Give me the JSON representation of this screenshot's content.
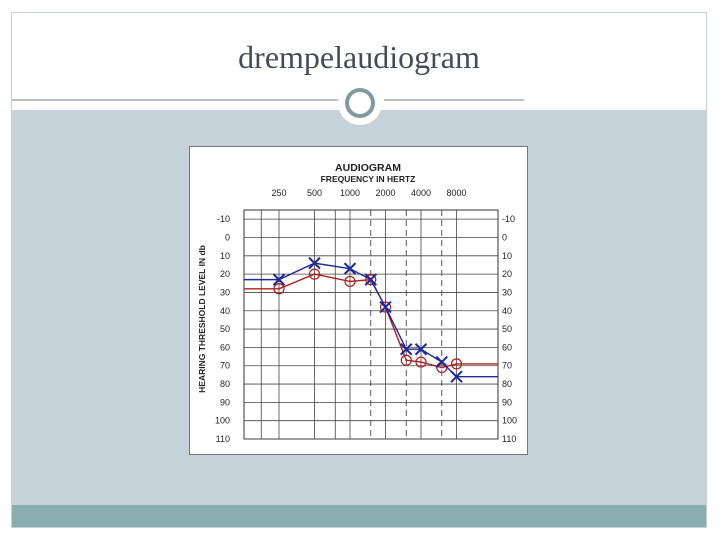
{
  "slide": {
    "title": "drempelaudiogram"
  },
  "colors": {
    "panel": "#c6d2d9",
    "footer": "#8aadb0",
    "ornament_ring": "#7f9aa2",
    "right_ear": "#b01e1e",
    "left_ear": "#1e2a9a"
  },
  "chart_data": {
    "type": "line",
    "title": "AUDIOGRAM",
    "subtitle": "FREQUENCY IN HERTZ",
    "xlabel": "FREQUENCY IN HERTZ",
    "ylabel": "HEARING THRESHOLD LEVEL IN db",
    "x_ticks": [
      "250",
      "500",
      "1000",
      "2000",
      "4000",
      "8000"
    ],
    "y_ticks": [
      "-10",
      "0",
      "10",
      "20",
      "30",
      "40",
      "50",
      "60",
      "70",
      "80",
      "90",
      "100",
      "110"
    ],
    "ylim": [
      -10,
      110
    ],
    "y_inverted": true,
    "grid": true,
    "series": [
      {
        "marker": "circle",
        "color": "#b01e1e",
        "x": [
          250,
          500,
          1000,
          1500,
          2000,
          3000,
          4000,
          6000,
          8000
        ],
        "y": [
          28,
          20,
          24,
          23,
          38,
          67,
          68,
          71,
          69
        ],
        "line_before": 28,
        "line_after": 69
      },
      {
        "marker": "x",
        "color": "#1e2a9a",
        "x": [
          250,
          500,
          1000,
          1500,
          2000,
          3000,
          4000,
          6000,
          8000
        ],
        "y": [
          23,
          14,
          17,
          23,
          38,
          61,
          61,
          68,
          76
        ],
        "line_before": 23,
        "line_after": 76
      }
    ]
  }
}
